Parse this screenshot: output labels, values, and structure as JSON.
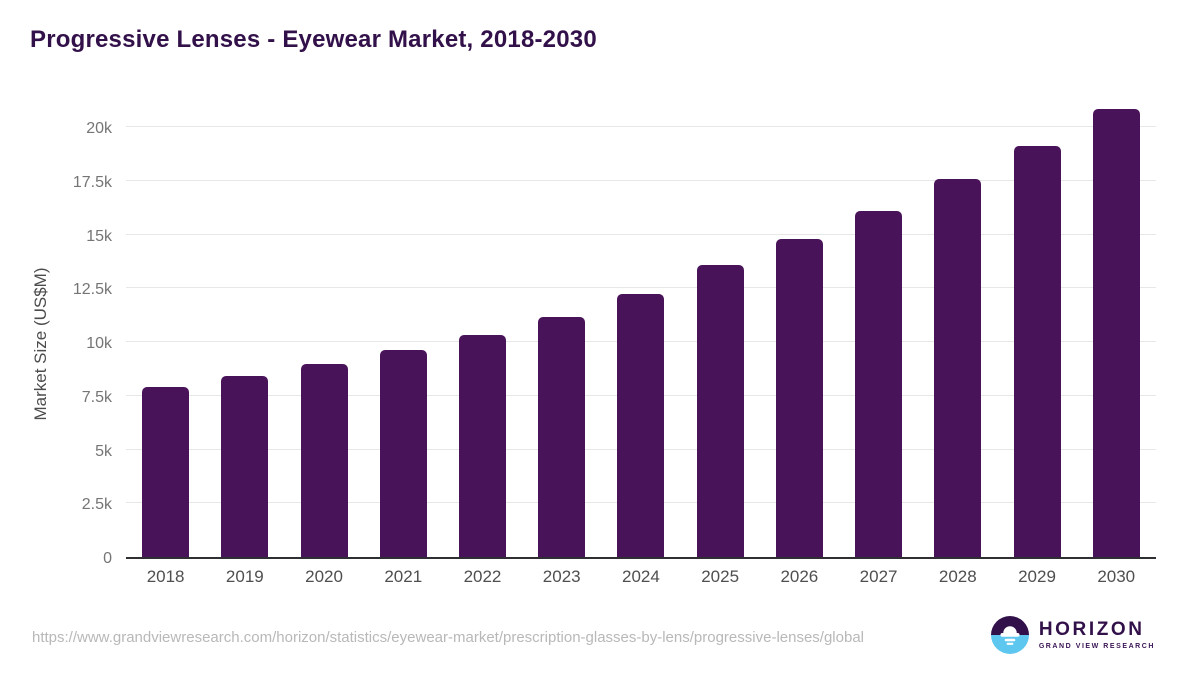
{
  "header": {
    "title": "Progressive Lenses - Eyewear Market, 2018-2030"
  },
  "chart_data": {
    "type": "bar",
    "title": "Progressive Lenses - Eyewear Market, 2018-2030",
    "categories": [
      "2018",
      "2019",
      "2020",
      "2021",
      "2022",
      "2023",
      "2024",
      "2025",
      "2026",
      "2027",
      "2028",
      "2029",
      "2030"
    ],
    "values": [
      7890,
      8400,
      8990,
      9640,
      10330,
      11160,
      12230,
      13560,
      14800,
      16110,
      17560,
      19100,
      20850
    ],
    "xlabel": "",
    "ylabel": "Market Size (US$M)",
    "ylim": [
      0,
      20000
    ],
    "yticks": [
      {
        "value": 0,
        "label": "0"
      },
      {
        "value": 2500,
        "label": "2.5k"
      },
      {
        "value": 5000,
        "label": "5k"
      },
      {
        "value": 7500,
        "label": "7.5k"
      },
      {
        "value": 10000,
        "label": "10k"
      },
      {
        "value": 12500,
        "label": "12.5k"
      },
      {
        "value": 15000,
        "label": "15k"
      },
      {
        "value": 17500,
        "label": "17.5k"
      },
      {
        "value": 20000,
        "label": "20k"
      }
    ],
    "grid": true,
    "legend_position": "none",
    "bar_color": "#49135A"
  },
  "footer": {
    "source_url": "https://www.grandviewresearch.com/horizon/statistics/eyewear-market/prescription-glasses-by-lens/progressive-lenses/global",
    "logo": {
      "brand": "HORIZON",
      "subtitle": "GRAND VIEW RESEARCH",
      "icon": "horizon-sun-icon"
    }
  },
  "colors": {
    "title": "#321049",
    "bar": "#49135A",
    "gridline": "#e7e7e7",
    "axis_line": "#2f2f33",
    "ytick_label": "#757575",
    "xtick_label": "#4f4f4f",
    "axis_title": "#4c4c4c",
    "source_url": "#b8b8b8",
    "logo_purple": "#321049",
    "logo_blue": "#5ec7ef"
  }
}
